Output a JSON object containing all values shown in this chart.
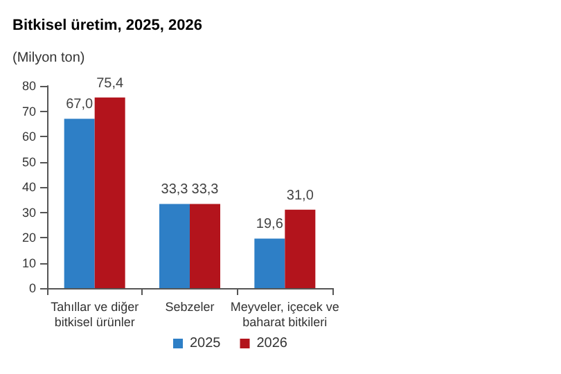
{
  "chart_data": {
    "type": "bar",
    "title": "Bitkisel üretim, 2025, 2026",
    "ylabel": "(Milyon ton)",
    "categories": [
      "Tahıllar ve diğer bitkisel ürünler",
      "Sebzeler",
      "Meyveler, içecek ve baharat bitkileri"
    ],
    "series": [
      {
        "name": "2025",
        "color": "#2e7fc6",
        "values": [
          67.0,
          33.3,
          19.6
        ],
        "value_labels": [
          "67,0",
          "33,3",
          "19,6"
        ]
      },
      {
        "name": "2026",
        "color": "#b3141c",
        "values": [
          75.4,
          33.3,
          31.0
        ],
        "value_labels": [
          "75,4",
          "33,3",
          "31,0"
        ]
      }
    ],
    "ylim": [
      0,
      80
    ],
    "yticks": [
      0,
      10,
      20,
      30,
      40,
      50,
      60,
      70,
      80
    ],
    "grid": false,
    "legend": "bottom"
  }
}
